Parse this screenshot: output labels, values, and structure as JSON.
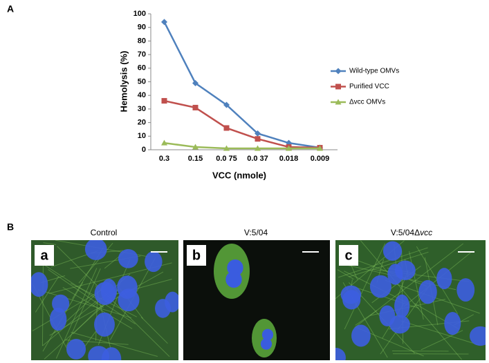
{
  "chart_data": {
    "type": "line",
    "panel": "A",
    "ylabel": "Hemolysis (%)",
    "xlabel": "VCC (nmole)",
    "categories": [
      "0.3",
      "0.15",
      "0.0 75",
      "0.0 37",
      "0.018",
      "0.009"
    ],
    "series": [
      {
        "name": "Wild-type OMVs",
        "color": "#4f81bd",
        "marker": "diamond",
        "values": [
          94,
          49,
          33,
          12,
          5,
          1.5
        ]
      },
      {
        "name": "Purified VCC",
        "color": "#c0504d",
        "marker": "square",
        "values": [
          36,
          31,
          16,
          8,
          2,
          1.5
        ]
      },
      {
        "name": "Δvcc OMVs",
        "color": "#9bbb59",
        "marker": "triangle",
        "values": [
          5,
          2,
          1,
          1,
          1,
          1
        ]
      }
    ],
    "ylim": [
      0,
      100
    ],
    "yticks": [
      0,
      10,
      20,
      30,
      40,
      50,
      60,
      70,
      80,
      90,
      100
    ],
    "legend": "right"
  },
  "panel_b": {
    "panel": "B",
    "images": [
      {
        "title": "Control",
        "letter": "a"
      },
      {
        "title": "V:5/04",
        "letter": "b"
      },
      {
        "title": "V:5/04Δ",
        "title_italic": "vcc",
        "letter": "c"
      }
    ]
  }
}
